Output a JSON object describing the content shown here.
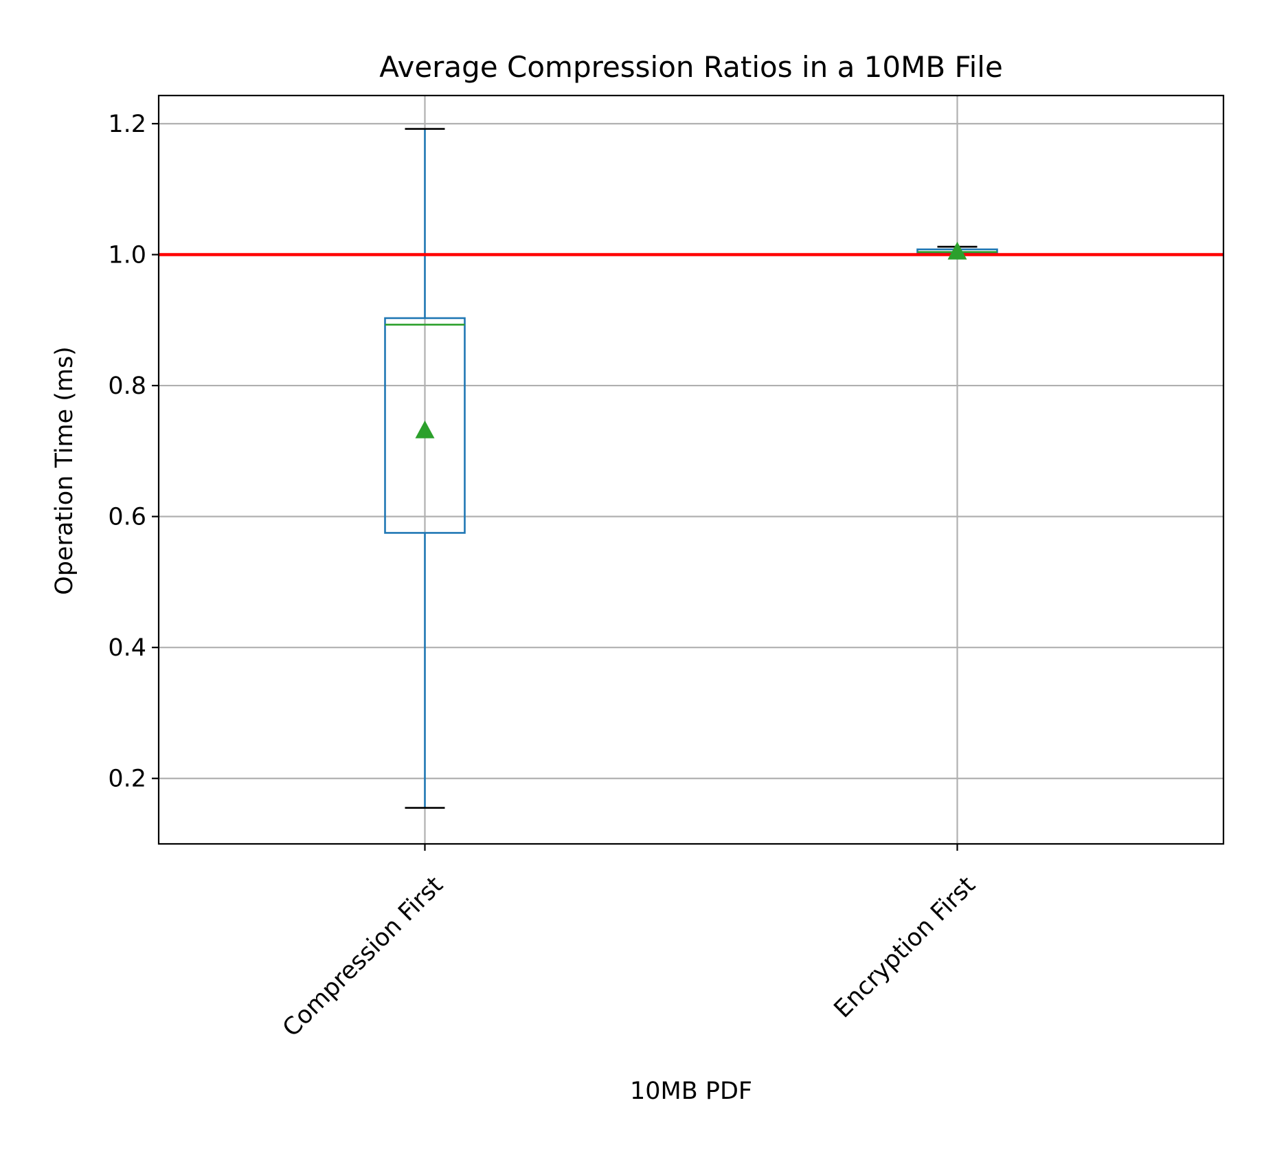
{
  "chart_data": {
    "type": "box",
    "title": "Average Compression Ratios in a 10MB File",
    "xlabel": "10MB PDF",
    "ylabel": "Operation Time (ms)",
    "categories": [
      "Compression First",
      "Encryption First"
    ],
    "boxes": [
      {
        "category": "Compression First",
        "whisker_low": 0.155,
        "q1": 0.575,
        "median": 0.893,
        "q3": 0.903,
        "whisker_high": 1.192,
        "mean": 0.732
      },
      {
        "category": "Encryption First",
        "whisker_low": 1.0,
        "q1": 1.002,
        "median": 1.004,
        "q3": 1.008,
        "whisker_high": 1.012,
        "mean": 1.005
      }
    ],
    "reference_line": {
      "y": 1.0,
      "color": "#ff0000"
    },
    "ylim": [
      0.1,
      1.243
    ],
    "yticks": [
      0.2,
      0.4,
      0.6,
      0.8,
      1.0,
      1.2
    ],
    "ytick_labels": [
      "0.2",
      "0.4",
      "0.6",
      "0.8",
      "1.0",
      "1.2"
    ],
    "grid": true,
    "colors": {
      "box": "#1f77b4",
      "median": "#2ca02c",
      "mean_marker": "#2ca02c",
      "caps": "#000000",
      "grid": "#b0b0b0"
    }
  }
}
